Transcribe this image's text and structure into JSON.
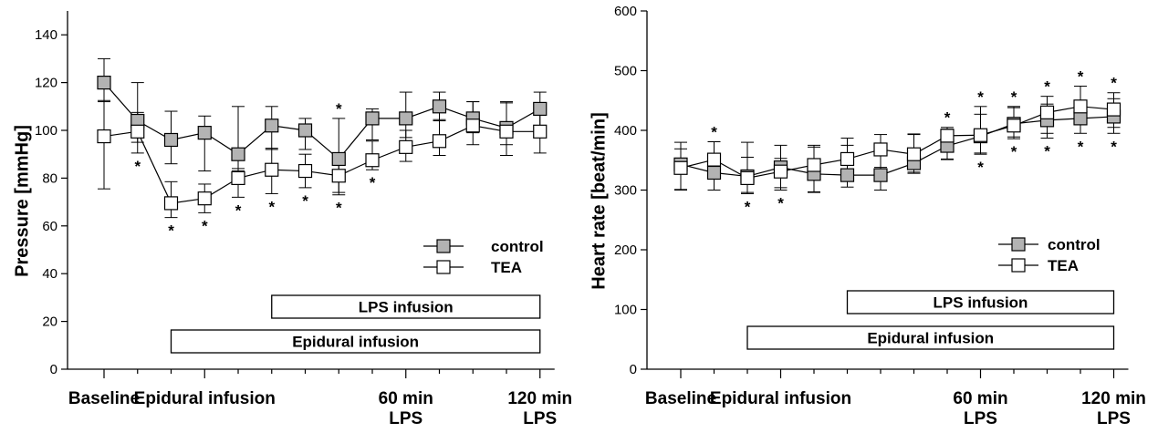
{
  "chart_data": [
    {
      "type": "line",
      "ylabel": "Pressure [mmHg]",
      "ylim": [
        0,
        150
      ],
      "yticks": [
        0,
        20,
        40,
        60,
        80,
        100,
        120,
        140
      ],
      "x": [
        0,
        1,
        2,
        3,
        4,
        5,
        6,
        7,
        8,
        9,
        10,
        11,
        12,
        13
      ],
      "category_labels": [
        {
          "x": 0,
          "lines": [
            "Baseline"
          ]
        },
        {
          "x": 3,
          "lines": [
            "Epidural infusion"
          ]
        },
        {
          "x": 9,
          "lines": [
            "60 min",
            "LPS"
          ]
        },
        {
          "x": 13,
          "lines": [
            "120 min",
            "LPS"
          ]
        }
      ],
      "series": [
        {
          "name": "control",
          "marker": "square-filled",
          "color": "#b3b3b3",
          "values": [
            120,
            104,
            96,
            99,
            90,
            102,
            100,
            88,
            105,
            105,
            110,
            105,
            101,
            109
          ],
          "err_up": [
            10,
            16,
            12,
            7,
            20,
            8,
            5,
            17,
            4,
            11,
            6,
            7,
            11,
            7
          ],
          "err_down": [
            8,
            9,
            10,
            16,
            7,
            10,
            8,
            15,
            9,
            8,
            6,
            6,
            7,
            8
          ]
        },
        {
          "name": "TEA",
          "marker": "square-open",
          "color": "#ffffff",
          "values": [
            97.5,
            99.5,
            69.5,
            71.5,
            80,
            83.5,
            83,
            81,
            87.5,
            93,
            95.5,
            102,
            99.5,
            99.5
          ],
          "err_up": [
            15,
            8,
            9,
            6,
            4,
            9,
            7,
            9,
            8,
            7,
            9,
            10,
            12,
            10
          ],
          "err_down": [
            22,
            9,
            6,
            6,
            8,
            10,
            7,
            7,
            4,
            6,
            6,
            8,
            10,
            9
          ]
        }
      ],
      "annotations": [
        {
          "x": 1,
          "position": "below",
          "text": "*"
        },
        {
          "x": 2,
          "position": "below",
          "text": "*"
        },
        {
          "x": 3,
          "position": "below",
          "text": "*"
        },
        {
          "x": 4,
          "position": "below",
          "text": "*"
        },
        {
          "x": 5,
          "position": "below",
          "text": "*"
        },
        {
          "x": 6,
          "position": "below",
          "text": "*"
        },
        {
          "x": 7,
          "position": "below",
          "text": "*"
        },
        {
          "x": 8,
          "position": "below",
          "text": "*"
        },
        {
          "x": 7,
          "position": "above",
          "text": "*"
        }
      ],
      "boxes": [
        {
          "label": "LPS infusion",
          "x_start": 5,
          "x_end": 13
        },
        {
          "label": "Epidural infusion",
          "x_start": 2,
          "x_end": 13
        }
      ],
      "legend": "right"
    },
    {
      "type": "line",
      "ylabel": "Heart rate [beat/min]",
      "ylim": [
        0,
        600
      ],
      "yticks": [
        0,
        100,
        200,
        300,
        400,
        500,
        600
      ],
      "x": [
        0,
        1,
        2,
        3,
        4,
        5,
        6,
        7,
        8,
        9,
        10,
        11,
        12,
        13
      ],
      "category_labels": [
        {
          "x": 0,
          "lines": [
            "Baseline"
          ]
        },
        {
          "x": 3,
          "lines": [
            "Epidural infusion"
          ]
        },
        {
          "x": 9,
          "lines": [
            "60 min",
            "LPS"
          ]
        },
        {
          "x": 13,
          "lines": [
            "120 min",
            "LPS"
          ]
        }
      ],
      "series": [
        {
          "name": "control",
          "marker": "square-filled",
          "color": "#b3b3b3",
          "values": [
            343,
            329,
            323,
            338,
            327,
            325,
            325,
            345,
            374,
            390,
            411,
            417,
            420,
            423
          ],
          "err_up": [
            37,
            52,
            57,
            37,
            48,
            50,
            45,
            49,
            28,
            50,
            29,
            27,
            30,
            30
          ],
          "err_down": [
            42,
            29,
            27,
            38,
            30,
            20,
            25,
            17,
            22,
            30,
            25,
            30,
            25,
            28
          ]
        },
        {
          "name": "TEA",
          "marker": "square-open",
          "color": "#ffffff",
          "values": [
            337,
            351,
            320,
            331,
            342,
            352,
            368,
            360,
            391,
            392,
            408,
            430,
            440,
            435
          ],
          "err_up": [
            32,
            30,
            35,
            22,
            30,
            35,
            25,
            33,
            14,
            35,
            30,
            27,
            34,
            28
          ],
          "err_down": [
            37,
            31,
            26,
            27,
            46,
            25,
            30,
            30,
            40,
            30,
            19,
            35,
            25,
            30
          ]
        }
      ],
      "annotations": [
        {
          "x": 1,
          "position": "above",
          "text": "*"
        },
        {
          "x": 2,
          "position": "below",
          "text": "*"
        },
        {
          "x": 3,
          "position": "below",
          "text": "*"
        },
        {
          "x": 8,
          "position": "above",
          "text": "*"
        },
        {
          "x": 9,
          "position": "above",
          "text": "*"
        },
        {
          "x": 9,
          "position": "below",
          "text": "*"
        },
        {
          "x": 10,
          "position": "above",
          "text": "*"
        },
        {
          "x": 10,
          "position": "below",
          "text": "*"
        },
        {
          "x": 11,
          "position": "above",
          "text": "*"
        },
        {
          "x": 11,
          "position": "below",
          "text": "*"
        },
        {
          "x": 12,
          "position": "above",
          "text": "*"
        },
        {
          "x": 12,
          "position": "below",
          "text": "*"
        },
        {
          "x": 13,
          "position": "above",
          "text": "*"
        },
        {
          "x": 13,
          "position": "below",
          "text": "*"
        }
      ],
      "boxes": [
        {
          "label": "LPS infusion",
          "x_start": 5,
          "x_end": 13
        },
        {
          "label": "Epidural infusion",
          "x_start": 2,
          "x_end": 13
        }
      ],
      "legend": "right"
    }
  ]
}
